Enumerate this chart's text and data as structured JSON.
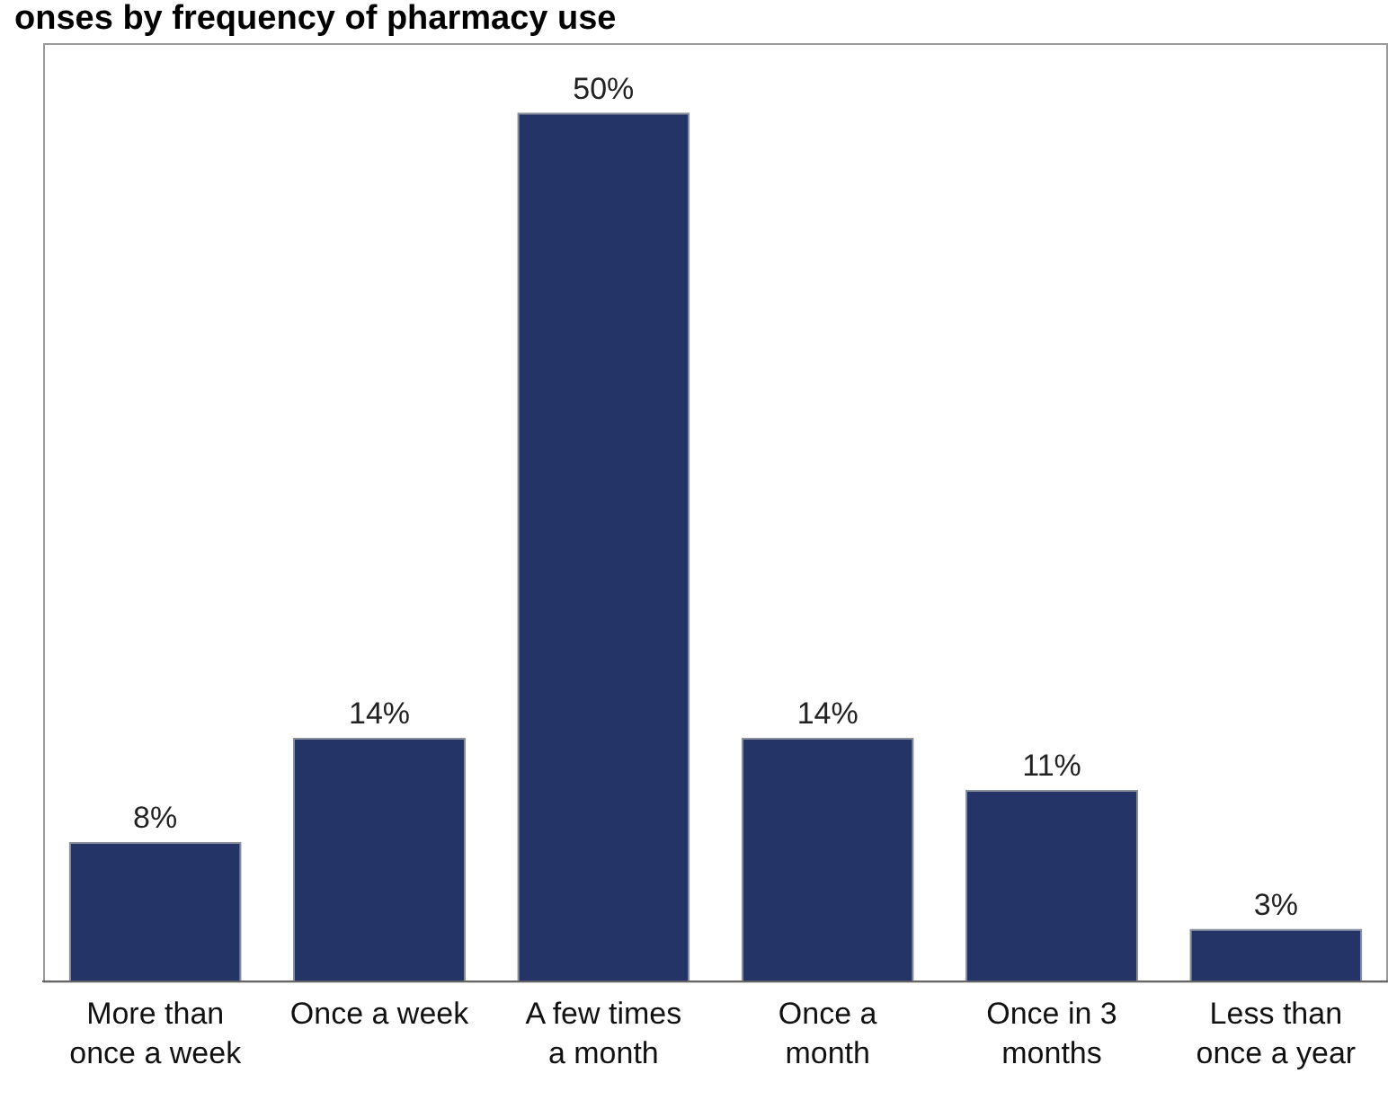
{
  "chart_data": {
    "type": "bar",
    "title": "onses by frequency of pharmacy use",
    "categories": [
      "More than\nonce a week",
      "Once a week",
      "A few times\na month",
      "Once a\nmonth",
      "Once in 3\nmonths",
      "Less than\nonce a year"
    ],
    "values": [
      8,
      14,
      50,
      14,
      11,
      3
    ],
    "value_labels": [
      "8%",
      "14%",
      "50%",
      "14%",
      "11%",
      "3%"
    ],
    "color": "#253466",
    "ylim": [
      0,
      54
    ],
    "tick_labels": "x",
    "grid": false,
    "legend": false
  }
}
